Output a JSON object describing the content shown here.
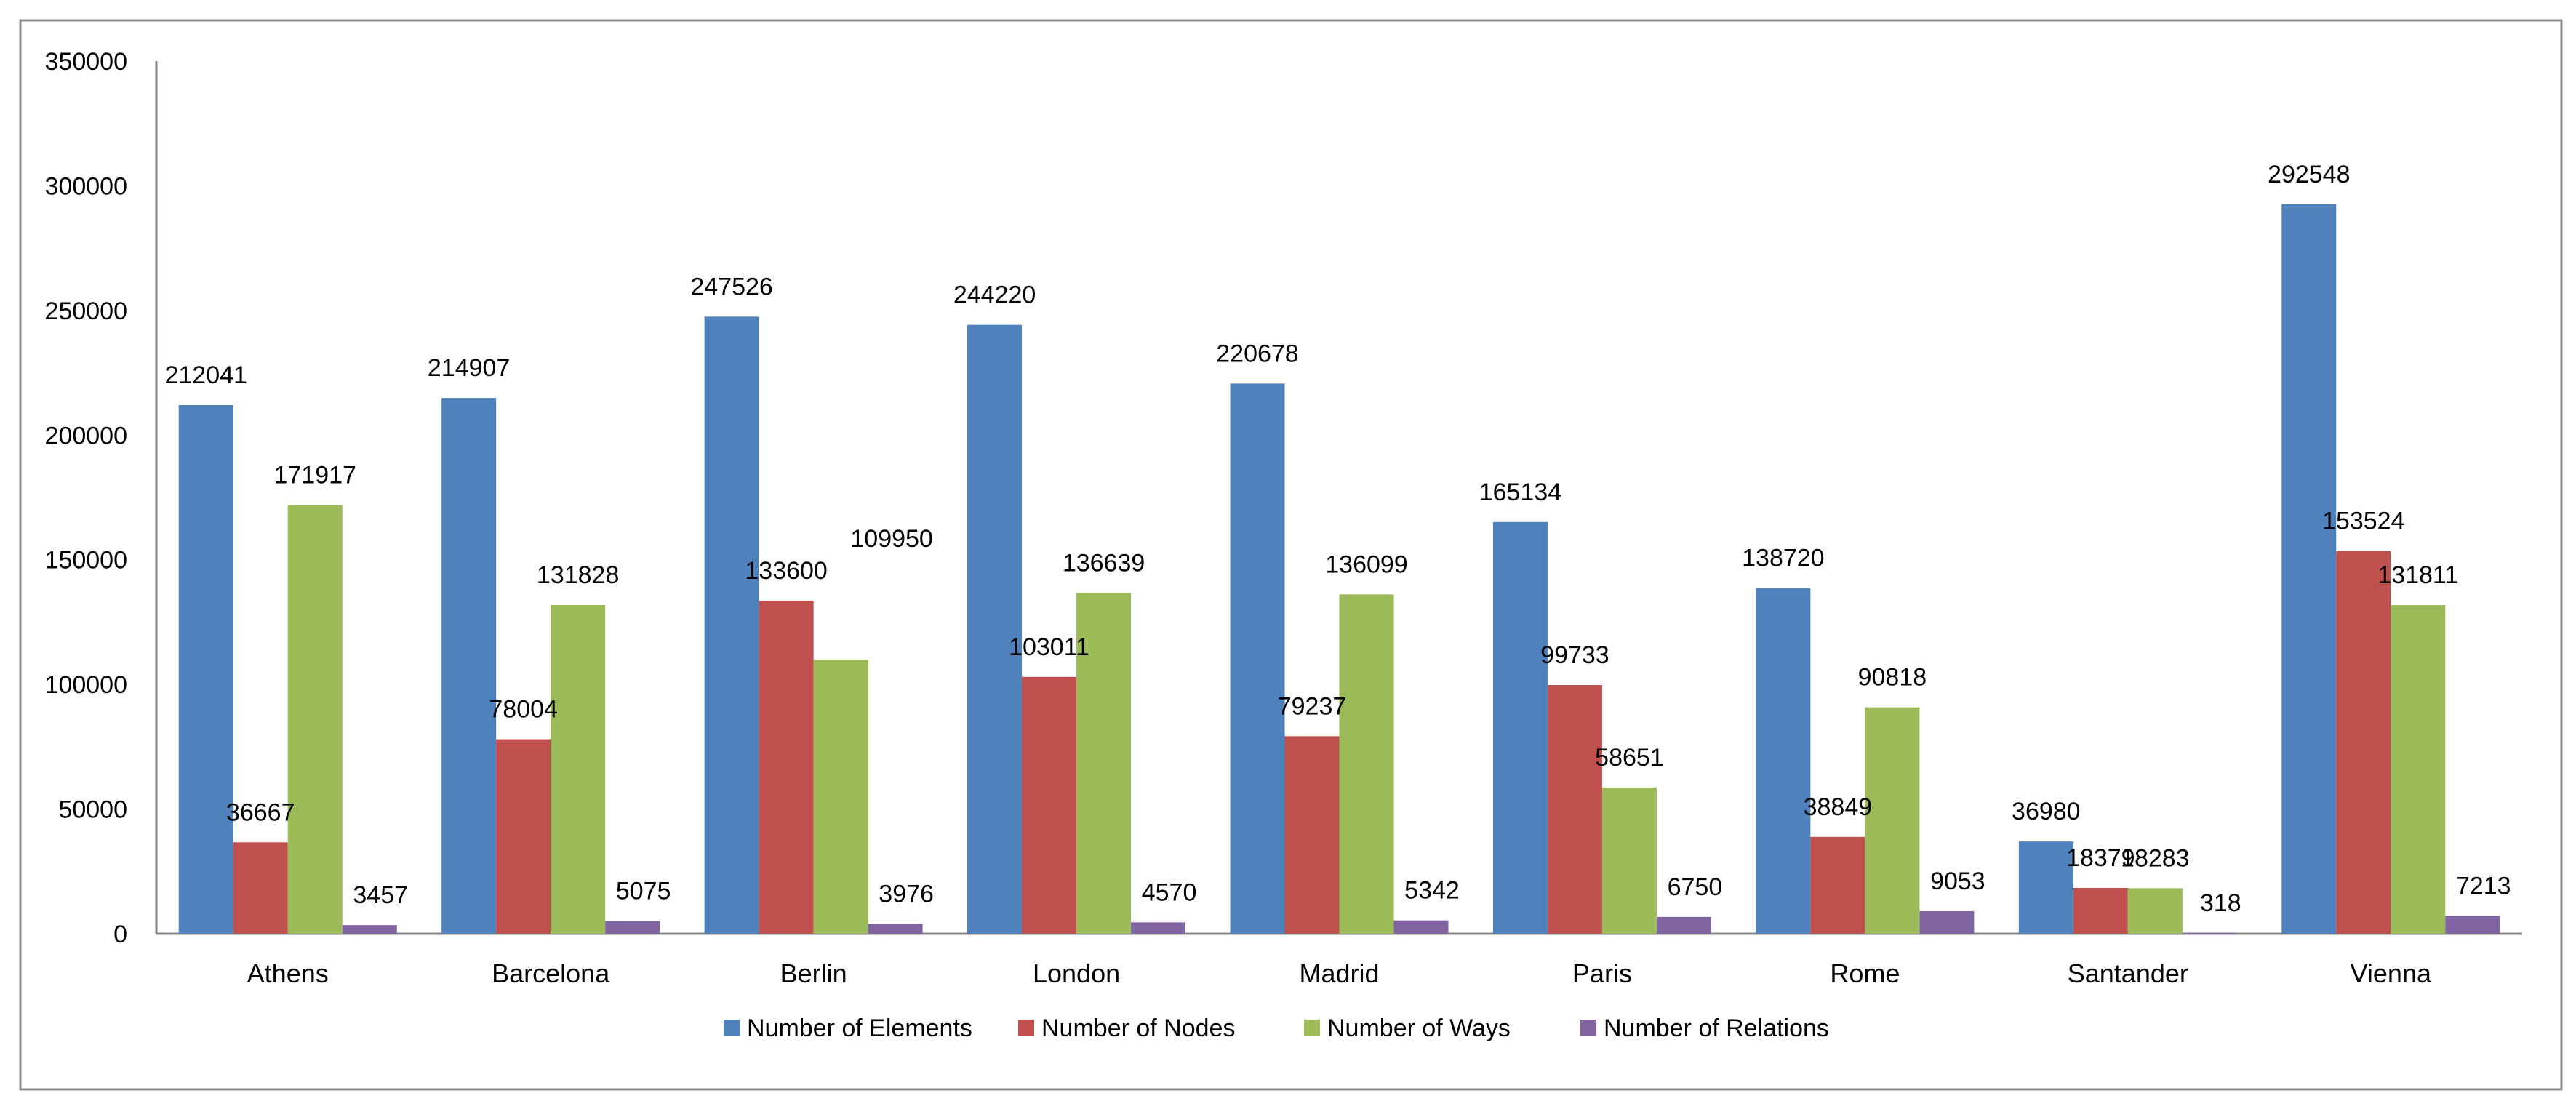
{
  "chart_data": {
    "type": "bar",
    "title": "",
    "xlabel": "",
    "ylabel": "",
    "ylim": [
      0,
      350000
    ],
    "yticks": [
      0,
      50000,
      100000,
      150000,
      200000,
      250000,
      300000,
      350000
    ],
    "ytick_labels": [
      "0",
      "50000",
      "100000",
      "150000",
      "200000",
      "250000",
      "300000",
      "350000"
    ],
    "grid": false,
    "legend_position": "bottom",
    "categories": [
      "Athens",
      "Barcelona",
      "Berlin",
      "London",
      "Madrid",
      "Paris",
      "Rome",
      "Santander",
      "Vienna"
    ],
    "series": [
      {
        "name": "Number of Elements",
        "color": "#4F81BD",
        "values": [
          212041,
          214907,
          247526,
          244220,
          220678,
          165134,
          138720,
          36980,
          292548
        ]
      },
      {
        "name": "Number of Nodes",
        "color": "#C0504D",
        "values": [
          36667,
          78004,
          133600,
          103011,
          79237,
          99733,
          38849,
          18379,
          153524
        ]
      },
      {
        "name": "Number of Ways",
        "color": "#9BBB59",
        "values": [
          171917,
          131828,
          109950,
          136639,
          136099,
          58651,
          90818,
          18283,
          131811
        ]
      },
      {
        "name": "Number of Relations",
        "color": "#8064A2",
        "values": [
          3457,
          5075,
          3976,
          4570,
          5342,
          6750,
          9053,
          318,
          7213
        ]
      }
    ]
  }
}
